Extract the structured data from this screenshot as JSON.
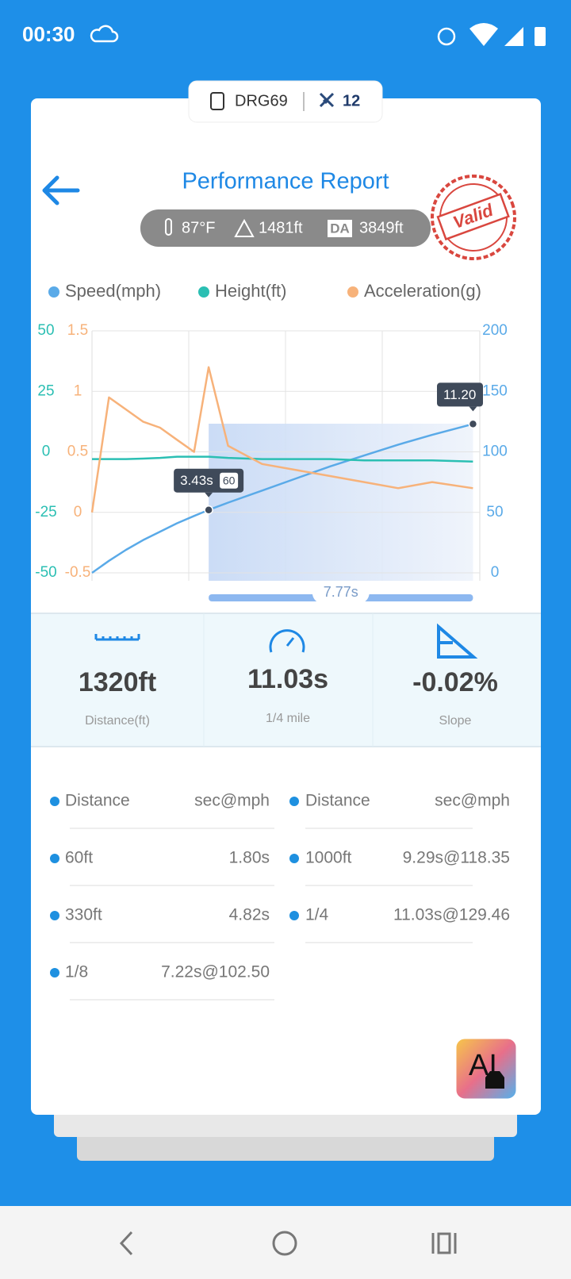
{
  "status_bar": {
    "time": "00:30"
  },
  "device": {
    "name": "DRG69",
    "satellites": "12"
  },
  "header": {
    "title": "Performance Report",
    "stamp": "Valid"
  },
  "conditions": {
    "temperature": "87°F",
    "altitude": "1481ft",
    "da_label": "DA",
    "density_altitude": "3849ft"
  },
  "chart_data": {
    "type": "line",
    "x": [
      0,
      0.5,
      1,
      1.5,
      2,
      2.5,
      3,
      3.43,
      4,
      5,
      6,
      7,
      8,
      9,
      10,
      11.2
    ],
    "xlim": [
      0,
      11.4
    ],
    "series": [
      {
        "name": "Speed(mph)",
        "color": "#5aaae8",
        "axis": "y2",
        "values": [
          0,
          10,
          19,
          27,
          34,
          41,
          47,
          52,
          58,
          68,
          78,
          88,
          97,
          106,
          114,
          123
        ]
      },
      {
        "name": "Height(ft)",
        "color": "#2bbfb3",
        "axis": "y",
        "values": [
          -3,
          -3,
          -3,
          -2.8,
          -2.5,
          -2,
          -2,
          -2,
          -2.5,
          -3,
          -3,
          -3,
          -3.5,
          -3.5,
          -3.5,
          -4
        ]
      },
      {
        "name": "Acceleration(g)",
        "color": "#f7b27a",
        "axis": "y3",
        "values": [
          0,
          0.95,
          0.85,
          0.75,
          0.7,
          0.6,
          0.5,
          1.2,
          0.55,
          0.4,
          0.35,
          0.3,
          0.25,
          0.2,
          0.25,
          0.2
        ]
      }
    ],
    "ylim": [
      -50,
      50
    ],
    "yticks": [
      -50,
      -25,
      0,
      25,
      50
    ],
    "y3lim": [
      -0.5,
      1.5
    ],
    "y3ticks": [
      -0.5,
      0,
      0.5,
      1,
      1.5
    ],
    "y2lim": [
      0,
      200
    ],
    "y2ticks": [
      0,
      50,
      100,
      150,
      200
    ],
    "grid": true,
    "annotations": [
      {
        "x": 3.43,
        "label": "3.43s",
        "badge": "60"
      },
      {
        "x": 11.2,
        "label": "11.20"
      }
    ],
    "selection": {
      "start": 3.43,
      "end": 11.2,
      "label": "7.77s"
    }
  },
  "stats": [
    {
      "value": "1320ft",
      "label": "Distance(ft)"
    },
    {
      "value": "11.03s",
      "label": "1/4 mile"
    },
    {
      "value": "-0.02%",
      "label": "Slope"
    }
  ],
  "table": {
    "columns": [
      {
        "header": [
          "Distance",
          "sec@mph"
        ],
        "rows": [
          [
            "60ft",
            "1.80s"
          ],
          [
            "330ft",
            "4.82s"
          ],
          [
            "1/8",
            "7.22s@102.50"
          ]
        ]
      },
      {
        "header": [
          "Distance",
          "sec@mph"
        ],
        "rows": [
          [
            "1000ft",
            "9.29s@118.35"
          ],
          [
            "1/4",
            "11.03s@129.46"
          ]
        ]
      }
    ]
  },
  "ai_button": "AI"
}
